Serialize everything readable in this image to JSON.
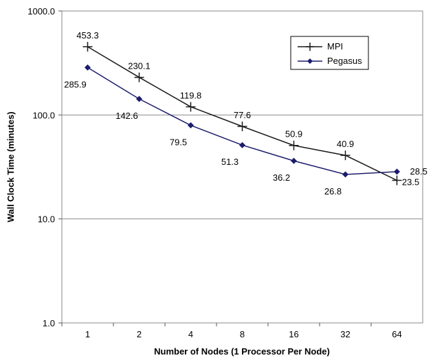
{
  "chart_data": {
    "type": "line",
    "title": "",
    "xlabel": "Number of Nodes (1 Processor Per Node)",
    "ylabel": "Wall Clock Time (minutes)",
    "y_scale": "log",
    "ylim": [
      1,
      1000
    ],
    "y_ticks": [
      "1.0",
      "10.0",
      "100.0",
      "1000.0"
    ],
    "grid": "horizontal major",
    "legend_position": "top-right",
    "categories": [
      "1",
      "2",
      "4",
      "8",
      "16",
      "32",
      "64"
    ],
    "series": [
      {
        "name": "MPI",
        "color": "#1a1a1a",
        "marker": "plus",
        "values": [
          453.3,
          230.1,
          119.8,
          77.6,
          50.9,
          40.9,
          23.5
        ],
        "labels": [
          "453.3",
          "230.1",
          "119.8",
          "77.6",
          "50.9",
          "40.9",
          "23.5"
        ]
      },
      {
        "name": "Pegasus",
        "color": "#1c1c6e",
        "marker": "diamond",
        "values": [
          285.9,
          142.6,
          79.5,
          51.3,
          36.2,
          26.8,
          28.5
        ],
        "labels": [
          "285.9",
          "142.6",
          "79.5",
          "51.3",
          "36.2",
          "26.8",
          "28.5"
        ]
      }
    ]
  }
}
